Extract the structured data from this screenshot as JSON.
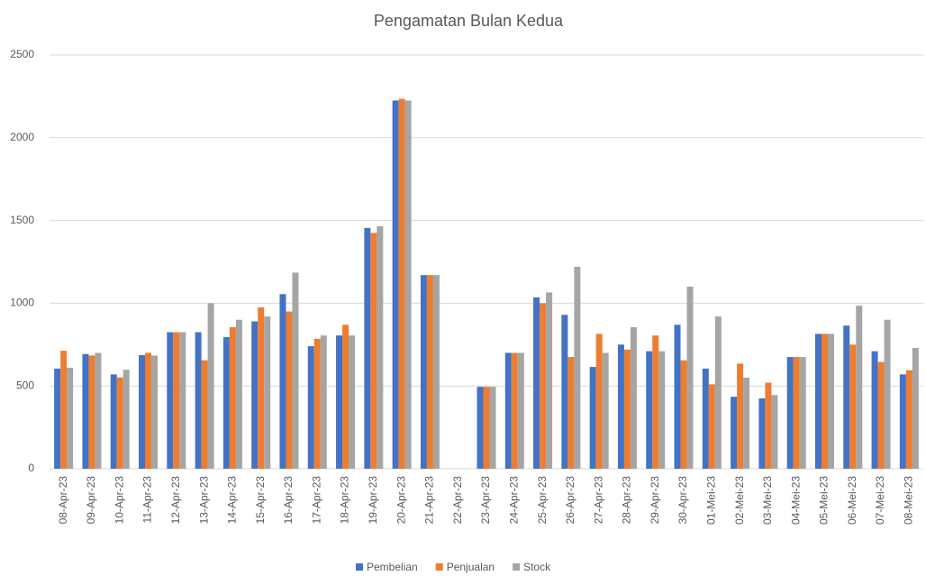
{
  "chart_data": {
    "type": "bar",
    "title": "Pengamatan Bulan Kedua",
    "categories": [
      "08-Apr-23",
      "09-Apr-23",
      "10-Apr-23",
      "11-Apr-23",
      "12-Apr-23",
      "13-Apr-23",
      "14-Apr-23",
      "15-Apr-23",
      "16-Apr-23",
      "17-Apr-23",
      "18-Apr-23",
      "19-Apr-23",
      "20-Apr-23",
      "21-Apr-23",
      "22-Apr-23",
      "23-Apr-23",
      "24-Apr-23",
      "25-Apr-23",
      "26-Apr-23",
      "27-Apr-23",
      "28-Apr-23",
      "29-Apr-23",
      "30-Apr-23",
      "01-Mei-23",
      "02-Mei-23",
      "03-Mei-23",
      "04-Mei-23",
      "05-Mei-23",
      "06-Mei-23",
      "07-Mei-23",
      "08-Mei-23"
    ],
    "series": [
      {
        "name": "Pembelian",
        "color": "#4472c4",
        "values": [
          605,
          693,
          570,
          686,
          825,
          825,
          795,
          890,
          1055,
          740,
          805,
          1455,
          2225,
          1170,
          null,
          495,
          700,
          1035,
          930,
          615,
          750,
          710,
          870,
          605,
          435,
          425,
          675,
          815,
          865,
          710,
          570
        ]
      },
      {
        "name": "Penjualan",
        "color": "#ed7d31",
        "values": [
          713,
          684,
          552,
          700,
          825,
          655,
          855,
          975,
          950,
          785,
          870,
          1425,
          2235,
          1170,
          null,
          495,
          700,
          1000,
          675,
          815,
          720,
          805,
          655,
          510,
          635,
          520,
          675,
          815,
          750,
          645,
          595
        ]
      },
      {
        "name": "Stock",
        "color": "#a5a5a5",
        "values": [
          610,
          700,
          598,
          684,
          825,
          1000,
          900,
          920,
          1185,
          805,
          805,
          1465,
          2225,
          1170,
          null,
          495,
          700,
          1065,
          1220,
          700,
          855,
          710,
          1100,
          920,
          550,
          445,
          675,
          815,
          985,
          900,
          730
        ]
      }
    ],
    "ylim": [
      0,
      2500
    ],
    "yticks": [
      0,
      500,
      1000,
      1500,
      2000,
      2500
    ],
    "grid": true,
    "legend": "bottom"
  }
}
